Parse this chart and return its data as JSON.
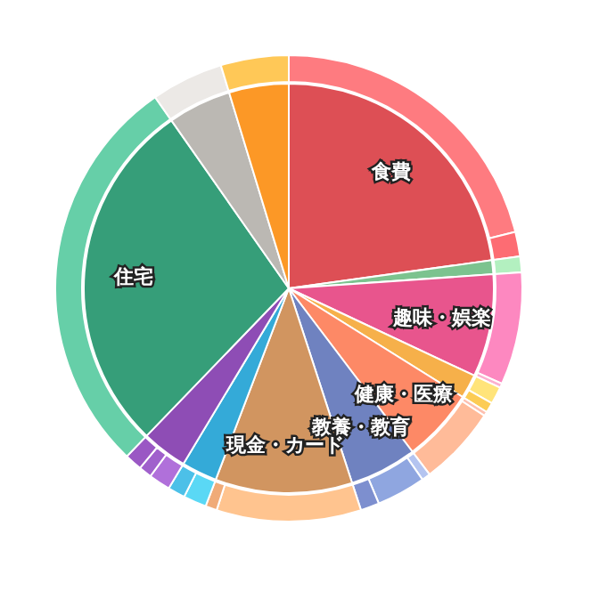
{
  "chart_data": [
    {
      "type": "pie",
      "categories": [
        "食費",
        null,
        "趣味・娯楽",
        null,
        "健康・医療",
        "教養・教育",
        "現金・カード",
        null,
        null,
        "住宅",
        null,
        null
      ],
      "values": [
        22.8,
        1.1,
        8.1,
        1.9,
        5.8,
        5.3,
        10.8,
        2.8,
        3.6,
        28.1,
        5.0,
        4.7
      ],
      "colors": [
        "#dd4f55",
        "#7cc38f",
        "#e8558d",
        "#f6b04a",
        "#fd8966",
        "#6f82c0",
        "#d19560",
        "#34aad8",
        "#8e4db5",
        "#369e79",
        "#bbb8b3",
        "#fc9826"
      ]
    },
    {
      "type": "donut",
      "categories": [
        null,
        null,
        null,
        null,
        null,
        null,
        null,
        null,
        null,
        null,
        null,
        null,
        null,
        null,
        null,
        null,
        null,
        null,
        null,
        null,
        null,
        null
      ],
      "values": [
        21.1,
        1.7,
        1.1,
        7.8,
        0.3,
        1.2,
        0.7,
        0.3,
        5.5,
        0.6,
        3.4,
        1.3,
        10.0,
        0.8,
        1.6,
        1.2,
        1.5,
        0.9,
        1.2,
        28.1,
        5.0,
        4.7
      ],
      "colors": [
        "#fe7b80",
        "#fd6c73",
        "#b3f0c0",
        "#fd88c0",
        "#fbb0cf",
        "#ffe47a",
        "#fccc55",
        "#fdc0b0",
        "#ffbb99",
        "#b4c4f0",
        "#8fa6e0",
        "#7d8fcf",
        "#ffc48f",
        "#f0ab78",
        "#5ad8f5",
        "#4cc0e8",
        "#b070da",
        "#a060cc",
        "#9a58c4",
        "#66cfa8",
        "#ece9e6",
        "#ffc857"
      ]
    }
  ]
}
